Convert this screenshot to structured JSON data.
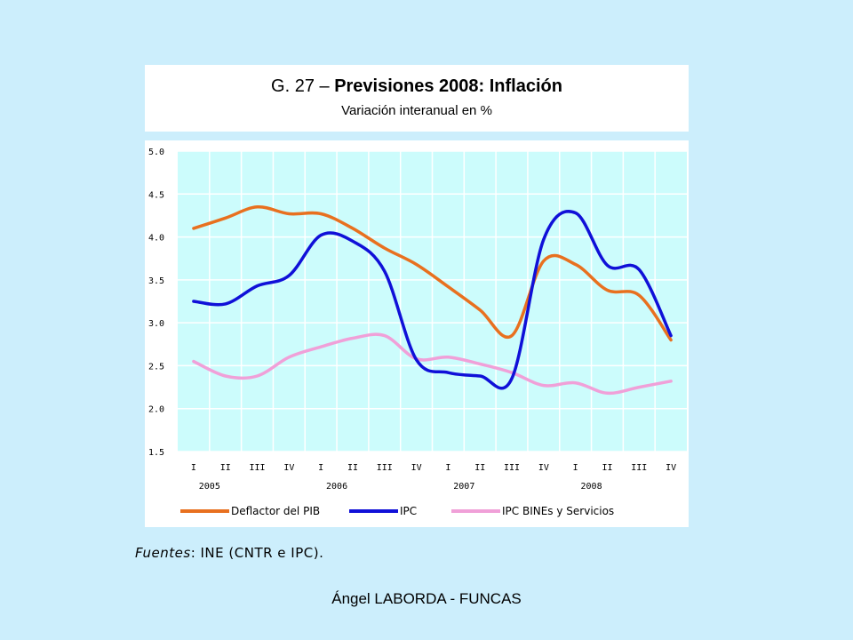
{
  "slide": {
    "title_prefix": "G. 27 – ",
    "title_bold": "Previsiones 2008: Inflación",
    "subtitle": "Variación interanual en %",
    "sources_label": "Fuentes",
    "sources_text": ": INE (CNTR e IPC).",
    "footer": "Ángel LABORDA - FUNCAS"
  },
  "chart_data": {
    "type": "line",
    "title": "Previsiones 2008: Inflación",
    "subtitle": "Variación interanual en %",
    "categories": [
      "I",
      "II",
      "III",
      "IV",
      "I",
      "II",
      "III",
      "IV",
      "I",
      "II",
      "III",
      "IV",
      "I",
      "II",
      "III",
      "IV"
    ],
    "years": [
      {
        "label": "2005",
        "start": 0
      },
      {
        "label": "2006",
        "start": 4
      },
      {
        "label": "2007",
        "start": 8
      },
      {
        "label": "2008",
        "start": 12
      }
    ],
    "ylim": [
      1.5,
      5.0
    ],
    "yticks": [
      "1.5",
      "2.0",
      "2.5",
      "3.0",
      "3.5",
      "4.0",
      "4.5",
      "5.0"
    ],
    "grid": true,
    "plot_background": "#ccfcfc",
    "legend_position": "bottom",
    "series": [
      {
        "name": "Deflactor del PIB",
        "color": "#e8701f",
        "values": [
          4.1,
          4.22,
          4.35,
          4.27,
          4.27,
          4.1,
          3.87,
          3.68,
          3.42,
          3.15,
          2.85,
          3.72,
          3.68,
          3.38,
          3.32,
          2.8
        ]
      },
      {
        "name": "IPC",
        "color": "#1010d8",
        "values": [
          3.25,
          3.22,
          3.43,
          3.55,
          4.02,
          3.95,
          3.6,
          2.57,
          2.42,
          2.38,
          2.35,
          3.97,
          4.28,
          3.67,
          3.62,
          2.85
        ]
      },
      {
        "name": "IPC BINEs y Servicios",
        "color": "#f0a0d8",
        "values": [
          2.55,
          2.38,
          2.38,
          2.6,
          2.72,
          2.82,
          2.85,
          2.58,
          2.6,
          2.52,
          2.42,
          2.27,
          2.3,
          2.18,
          2.25,
          2.32
        ]
      }
    ]
  }
}
